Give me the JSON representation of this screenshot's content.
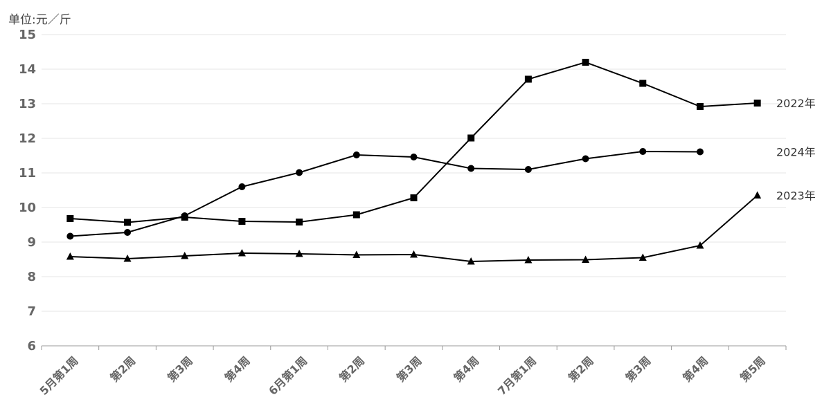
{
  "unit_label": "单位:元／斤",
  "chart_data": {
    "type": "line",
    "ylim": [
      6,
      15
    ],
    "yticks": [
      6,
      7,
      8,
      9,
      10,
      11,
      12,
      13,
      14,
      15
    ],
    "grid": true,
    "categories": [
      "5月第1周",
      "第2周",
      "第3周",
      "第4周",
      "6月第1周",
      "第2周",
      "第3周",
      "第4周",
      "7月第1周",
      "第2周",
      "第3周",
      "第4周",
      "第5周"
    ],
    "series": [
      {
        "name": "2022年",
        "marker": "square",
        "color": "#000000",
        "values": [
          9.68,
          9.57,
          9.72,
          9.6,
          9.58,
          9.79,
          10.28,
          12.01,
          13.71,
          14.2,
          13.59,
          12.92,
          13.02
        ]
      },
      {
        "name": "2024年",
        "marker": "circle",
        "color": "#000000",
        "values": [
          9.17,
          9.28,
          9.76,
          10.6,
          11.01,
          11.52,
          11.46,
          11.13,
          11.1,
          11.41,
          11.62,
          11.61,
          null
        ]
      },
      {
        "name": "2023年",
        "marker": "triangle",
        "color": "#000000",
        "values": [
          8.58,
          8.52,
          8.6,
          8.68,
          8.66,
          8.63,
          8.64,
          8.44,
          8.48,
          8.49,
          8.55,
          8.9,
          10.35
        ]
      }
    ]
  }
}
